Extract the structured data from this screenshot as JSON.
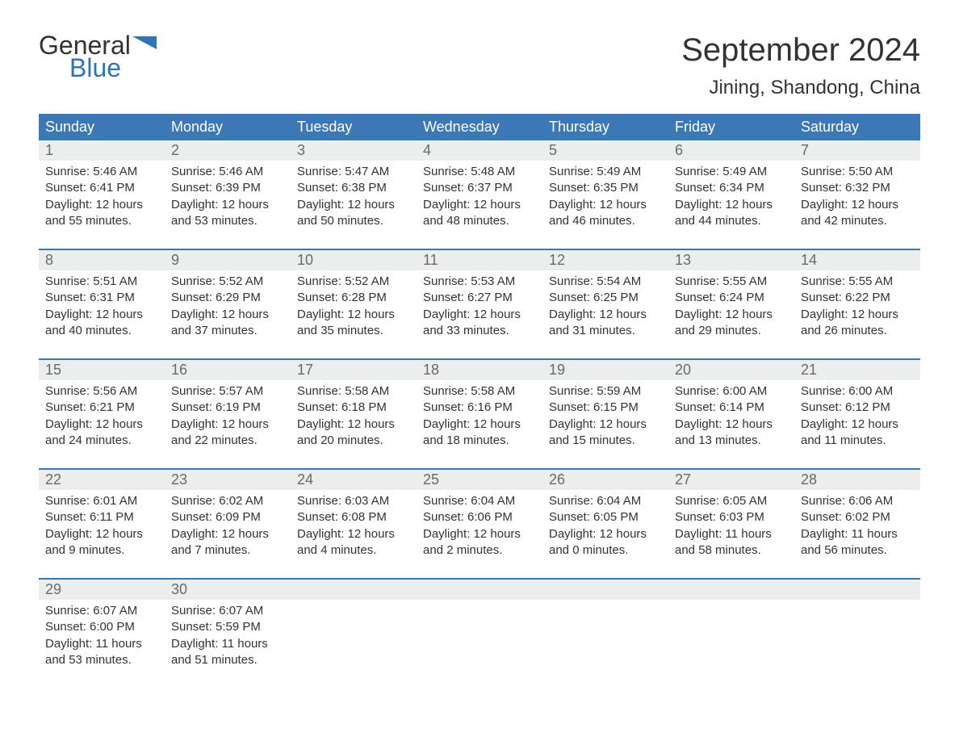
{
  "logo": {
    "top": "General",
    "bottom": "Blue"
  },
  "title": "September 2024",
  "location": "Jining, Shandong, China",
  "colors": {
    "header_bg": "#3b78b5",
    "header_text": "#ffffff",
    "daynum_bg": "#eceded",
    "daynum_text": "#6a6a6a",
    "body_text": "#333333",
    "logo_blue": "#2e75b6",
    "week_border": "#3b78b5"
  },
  "weekdays": [
    "Sunday",
    "Monday",
    "Tuesday",
    "Wednesday",
    "Thursday",
    "Friday",
    "Saturday"
  ],
  "weeks": [
    [
      {
        "n": "1",
        "sunrise": "Sunrise: 5:46 AM",
        "sunset": "Sunset: 6:41 PM",
        "d1": "Daylight: 12 hours",
        "d2": "and 55 minutes."
      },
      {
        "n": "2",
        "sunrise": "Sunrise: 5:46 AM",
        "sunset": "Sunset: 6:39 PM",
        "d1": "Daylight: 12 hours",
        "d2": "and 53 minutes."
      },
      {
        "n": "3",
        "sunrise": "Sunrise: 5:47 AM",
        "sunset": "Sunset: 6:38 PM",
        "d1": "Daylight: 12 hours",
        "d2": "and 50 minutes."
      },
      {
        "n": "4",
        "sunrise": "Sunrise: 5:48 AM",
        "sunset": "Sunset: 6:37 PM",
        "d1": "Daylight: 12 hours",
        "d2": "and 48 minutes."
      },
      {
        "n": "5",
        "sunrise": "Sunrise: 5:49 AM",
        "sunset": "Sunset: 6:35 PM",
        "d1": "Daylight: 12 hours",
        "d2": "and 46 minutes."
      },
      {
        "n": "6",
        "sunrise": "Sunrise: 5:49 AM",
        "sunset": "Sunset: 6:34 PM",
        "d1": "Daylight: 12 hours",
        "d2": "and 44 minutes."
      },
      {
        "n": "7",
        "sunrise": "Sunrise: 5:50 AM",
        "sunset": "Sunset: 6:32 PM",
        "d1": "Daylight: 12 hours",
        "d2": "and 42 minutes."
      }
    ],
    [
      {
        "n": "8",
        "sunrise": "Sunrise: 5:51 AM",
        "sunset": "Sunset: 6:31 PM",
        "d1": "Daylight: 12 hours",
        "d2": "and 40 minutes."
      },
      {
        "n": "9",
        "sunrise": "Sunrise: 5:52 AM",
        "sunset": "Sunset: 6:29 PM",
        "d1": "Daylight: 12 hours",
        "d2": "and 37 minutes."
      },
      {
        "n": "10",
        "sunrise": "Sunrise: 5:52 AM",
        "sunset": "Sunset: 6:28 PM",
        "d1": "Daylight: 12 hours",
        "d2": "and 35 minutes."
      },
      {
        "n": "11",
        "sunrise": "Sunrise: 5:53 AM",
        "sunset": "Sunset: 6:27 PM",
        "d1": "Daylight: 12 hours",
        "d2": "and 33 minutes."
      },
      {
        "n": "12",
        "sunrise": "Sunrise: 5:54 AM",
        "sunset": "Sunset: 6:25 PM",
        "d1": "Daylight: 12 hours",
        "d2": "and 31 minutes."
      },
      {
        "n": "13",
        "sunrise": "Sunrise: 5:55 AM",
        "sunset": "Sunset: 6:24 PM",
        "d1": "Daylight: 12 hours",
        "d2": "and 29 minutes."
      },
      {
        "n": "14",
        "sunrise": "Sunrise: 5:55 AM",
        "sunset": "Sunset: 6:22 PM",
        "d1": "Daylight: 12 hours",
        "d2": "and 26 minutes."
      }
    ],
    [
      {
        "n": "15",
        "sunrise": "Sunrise: 5:56 AM",
        "sunset": "Sunset: 6:21 PM",
        "d1": "Daylight: 12 hours",
        "d2": "and 24 minutes."
      },
      {
        "n": "16",
        "sunrise": "Sunrise: 5:57 AM",
        "sunset": "Sunset: 6:19 PM",
        "d1": "Daylight: 12 hours",
        "d2": "and 22 minutes."
      },
      {
        "n": "17",
        "sunrise": "Sunrise: 5:58 AM",
        "sunset": "Sunset: 6:18 PM",
        "d1": "Daylight: 12 hours",
        "d2": "and 20 minutes."
      },
      {
        "n": "18",
        "sunrise": "Sunrise: 5:58 AM",
        "sunset": "Sunset: 6:16 PM",
        "d1": "Daylight: 12 hours",
        "d2": "and 18 minutes."
      },
      {
        "n": "19",
        "sunrise": "Sunrise: 5:59 AM",
        "sunset": "Sunset: 6:15 PM",
        "d1": "Daylight: 12 hours",
        "d2": "and 15 minutes."
      },
      {
        "n": "20",
        "sunrise": "Sunrise: 6:00 AM",
        "sunset": "Sunset: 6:14 PM",
        "d1": "Daylight: 12 hours",
        "d2": "and 13 minutes."
      },
      {
        "n": "21",
        "sunrise": "Sunrise: 6:00 AM",
        "sunset": "Sunset: 6:12 PM",
        "d1": "Daylight: 12 hours",
        "d2": "and 11 minutes."
      }
    ],
    [
      {
        "n": "22",
        "sunrise": "Sunrise: 6:01 AM",
        "sunset": "Sunset: 6:11 PM",
        "d1": "Daylight: 12 hours",
        "d2": "and 9 minutes."
      },
      {
        "n": "23",
        "sunrise": "Sunrise: 6:02 AM",
        "sunset": "Sunset: 6:09 PM",
        "d1": "Daylight: 12 hours",
        "d2": "and 7 minutes."
      },
      {
        "n": "24",
        "sunrise": "Sunrise: 6:03 AM",
        "sunset": "Sunset: 6:08 PM",
        "d1": "Daylight: 12 hours",
        "d2": "and 4 minutes."
      },
      {
        "n": "25",
        "sunrise": "Sunrise: 6:04 AM",
        "sunset": "Sunset: 6:06 PM",
        "d1": "Daylight: 12 hours",
        "d2": "and 2 minutes."
      },
      {
        "n": "26",
        "sunrise": "Sunrise: 6:04 AM",
        "sunset": "Sunset: 6:05 PM",
        "d1": "Daylight: 12 hours",
        "d2": "and 0 minutes."
      },
      {
        "n": "27",
        "sunrise": "Sunrise: 6:05 AM",
        "sunset": "Sunset: 6:03 PM",
        "d1": "Daylight: 11 hours",
        "d2": "and 58 minutes."
      },
      {
        "n": "28",
        "sunrise": "Sunrise: 6:06 AM",
        "sunset": "Sunset: 6:02 PM",
        "d1": "Daylight: 11 hours",
        "d2": "and 56 minutes."
      }
    ],
    [
      {
        "n": "29",
        "sunrise": "Sunrise: 6:07 AM",
        "sunset": "Sunset: 6:00 PM",
        "d1": "Daylight: 11 hours",
        "d2": "and 53 minutes."
      },
      {
        "n": "30",
        "sunrise": "Sunrise: 6:07 AM",
        "sunset": "Sunset: 5:59 PM",
        "d1": "Daylight: 11 hours",
        "d2": "and 51 minutes."
      },
      {
        "empty": true
      },
      {
        "empty": true
      },
      {
        "empty": true
      },
      {
        "empty": true
      },
      {
        "empty": true
      }
    ]
  ]
}
